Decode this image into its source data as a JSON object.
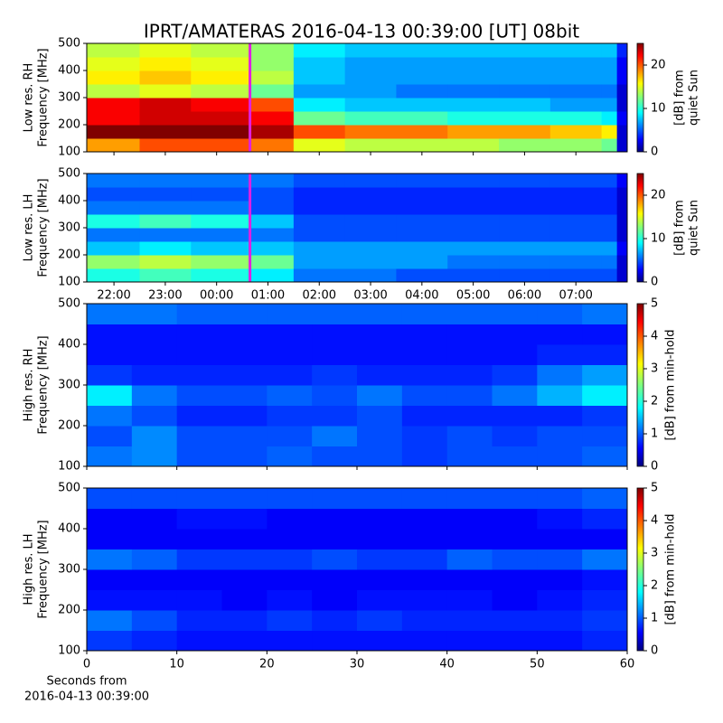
{
  "title": "IPRT/AMATERAS 2016-04-13 00:39:00 [UT]   08bit",
  "chart_data": [
    {
      "type": "heatmap",
      "colormap": "jet",
      "ylabel": [
        "Low res. RH",
        "Frequency [MHz]"
      ],
      "colorbar_label": [
        "[dB] from",
        "quiet Sun"
      ],
      "xlim": [
        21.47,
        32.0
      ],
      "xticks": [
        22,
        23,
        24,
        25,
        26,
        27,
        28,
        29,
        30,
        31
      ],
      "show_xtick_labels": false,
      "ylim": [
        100,
        500
      ],
      "yticks": [
        100,
        200,
        300,
        400,
        500
      ],
      "clim": [
        0,
        25
      ],
      "cticks": [
        0,
        10,
        20
      ],
      "marker_x": 24.65,
      "marker_color": "#e020e0",
      "x_bins": [
        21.47,
        22.5,
        23.5,
        24.65,
        25.5,
        26.5,
        27.5,
        28.5,
        29.5,
        30.5,
        31.5,
        31.8,
        32.0
      ],
      "y_bins": [
        100,
        150,
        200,
        250,
        300,
        350,
        400,
        450,
        500
      ],
      "values": [
        [
          18,
          20,
          20,
          19,
          15,
          14,
          14,
          14,
          13,
          13,
          12,
          2
        ],
        [
          25,
          25,
          25,
          24,
          20,
          19,
          19,
          18,
          18,
          17,
          16,
          2
        ],
        [
          22,
          23,
          23,
          22,
          12,
          11,
          11,
          10,
          10,
          10,
          9,
          3
        ],
        [
          22,
          23,
          22,
          20,
          9,
          8,
          8,
          8,
          8,
          7,
          7,
          2
        ],
        [
          14,
          15,
          14,
          12,
          7,
          7,
          6,
          6,
          6,
          6,
          6,
          2
        ],
        [
          16,
          17,
          16,
          14,
          8,
          7,
          7,
          7,
          7,
          7,
          7,
          3
        ],
        [
          15,
          16,
          15,
          13,
          8,
          7,
          7,
          7,
          7,
          7,
          7,
          3
        ],
        [
          14,
          15,
          14,
          13,
          9,
          8,
          8,
          8,
          8,
          8,
          8,
          4
        ]
      ]
    },
    {
      "type": "heatmap",
      "colormap": "jet",
      "ylabel": [
        "Low res. LH",
        "Frequency [MHz]"
      ],
      "colorbar_label": [
        "[dB] from",
        "quiet Sun"
      ],
      "xlim": [
        21.47,
        32.0
      ],
      "xticks": [
        {
          "value": 22,
          "label": "22:00"
        },
        {
          "value": 23,
          "label": "23:00"
        },
        {
          "value": 24,
          "label": "00:00"
        },
        {
          "value": 25,
          "label": "01:00"
        },
        {
          "value": 26,
          "label": "02:00"
        },
        {
          "value": 27,
          "label": "03:00"
        },
        {
          "value": 28,
          "label": "04:00"
        },
        {
          "value": 29,
          "label": "05:00"
        },
        {
          "value": 30,
          "label": "06:00"
        },
        {
          "value": 31,
          "label": "07:00"
        }
      ],
      "show_xtick_labels": true,
      "ylim": [
        100,
        500
      ],
      "yticks": [
        100,
        200,
        300,
        400,
        500
      ],
      "clim": [
        0,
        25
      ],
      "cticks": [
        0,
        10,
        20
      ],
      "marker_x": 24.65,
      "marker_color": "#e020e0",
      "x_bins": [
        21.47,
        22.5,
        23.5,
        24.65,
        25.5,
        26.5,
        27.5,
        28.5,
        29.5,
        30.5,
        31.5,
        31.8,
        32.0
      ],
      "y_bins": [
        100,
        150,
        200,
        250,
        300,
        350,
        400,
        450,
        500
      ],
      "values": [
        [
          10,
          11,
          10,
          9,
          6,
          6,
          5,
          5,
          5,
          5,
          5,
          2
        ],
        [
          13,
          14,
          13,
          12,
          7,
          7,
          7,
          6,
          6,
          6,
          6,
          2
        ],
        [
          8,
          9,
          8,
          8,
          7,
          7,
          7,
          7,
          7,
          7,
          7,
          3
        ],
        [
          6,
          6,
          6,
          6,
          5,
          5,
          5,
          5,
          5,
          5,
          5,
          2
        ],
        [
          10,
          11,
          10,
          8,
          5,
          5,
          5,
          5,
          5,
          5,
          5,
          2
        ],
        [
          6,
          6,
          6,
          5,
          4,
          4,
          4,
          4,
          4,
          4,
          4,
          2
        ],
        [
          5,
          5,
          5,
          5,
          4,
          4,
          4,
          4,
          4,
          4,
          4,
          2
        ],
        [
          6,
          6,
          6,
          6,
          5,
          5,
          5,
          5,
          5,
          5,
          5,
          3
        ]
      ]
    },
    {
      "type": "heatmap",
      "colormap": "jet",
      "ylabel": [
        "High res. RH",
        "Frequency [MHz]"
      ],
      "colorbar_label": [
        "[dB] from min-hold"
      ],
      "xlim": [
        0,
        60
      ],
      "xticks": [
        0,
        10,
        20,
        30,
        40,
        50,
        60
      ],
      "show_xtick_labels": false,
      "ylim": [
        100,
        500
      ],
      "yticks": [
        100,
        200,
        300,
        400,
        500
      ],
      "clim": [
        0,
        5
      ],
      "cticks": [
        0,
        1,
        2,
        3,
        4,
        5
      ],
      "x_bins": [
        0,
        5,
        10,
        15,
        20,
        25,
        30,
        35,
        40,
        45,
        50,
        55,
        60
      ],
      "y_bins": [
        100,
        150,
        200,
        250,
        300,
        350,
        400,
        450,
        500
      ],
      "values": [
        [
          1.2,
          1.3,
          1.0,
          1.0,
          1.1,
          1.0,
          1.0,
          0.9,
          1.0,
          1.0,
          1.0,
          1.1
        ],
        [
          1.0,
          1.3,
          1.0,
          1.0,
          1.0,
          1.2,
          1.0,
          0.9,
          1.0,
          0.9,
          1.0,
          1.0
        ],
        [
          1.2,
          1.0,
          0.8,
          0.8,
          0.9,
          0.9,
          1.0,
          0.8,
          0.8,
          0.8,
          0.8,
          0.9
        ],
        [
          1.8,
          1.2,
          1.0,
          1.0,
          1.1,
          1.0,
          1.2,
          1.0,
          1.0,
          1.2,
          1.5,
          1.8
        ],
        [
          0.9,
          0.8,
          0.8,
          0.8,
          0.8,
          0.9,
          0.8,
          0.8,
          0.8,
          0.9,
          1.2,
          1.4
        ],
        [
          0.7,
          0.7,
          0.7,
          0.7,
          0.7,
          0.7,
          0.7,
          0.7,
          0.7,
          0.7,
          0.8,
          0.8
        ],
        [
          0.7,
          0.7,
          0.7,
          0.7,
          0.7,
          0.7,
          0.7,
          0.7,
          0.7,
          0.7,
          0.7,
          0.7
        ],
        [
          1.2,
          1.2,
          1.1,
          1.1,
          1.1,
          1.1,
          1.1,
          1.1,
          1.1,
          1.1,
          1.1,
          1.2
        ]
      ]
    },
    {
      "type": "heatmap",
      "colormap": "jet",
      "ylabel": [
        "High res. LH",
        "Frequency [MHz]"
      ],
      "colorbar_label": [
        "[dB] from min-hold"
      ],
      "xlabel": [
        "Seconds from",
        "2016-04-13 00:39:00"
      ],
      "xlim": [
        0,
        60
      ],
      "xticks": [
        0,
        10,
        20,
        30,
        40,
        50,
        60
      ],
      "show_xtick_labels": true,
      "ylim": [
        100,
        500
      ],
      "yticks": [
        100,
        200,
        300,
        400,
        500
      ],
      "clim": [
        0,
        5
      ],
      "cticks": [
        0,
        1,
        2,
        3,
        4,
        5
      ],
      "x_bins": [
        0,
        5,
        10,
        15,
        20,
        25,
        30,
        35,
        40,
        45,
        50,
        55,
        60
      ],
      "y_bins": [
        100,
        150,
        200,
        250,
        300,
        350,
        400,
        450,
        500
      ],
      "values": [
        [
          0.9,
          0.8,
          0.7,
          0.7,
          0.7,
          0.7,
          0.7,
          0.7,
          0.7,
          0.7,
          0.7,
          0.8
        ],
        [
          1.2,
          1.0,
          0.8,
          0.8,
          0.9,
          0.8,
          0.9,
          0.8,
          0.8,
          0.8,
          0.8,
          0.9
        ],
        [
          0.7,
          0.7,
          0.7,
          0.6,
          0.7,
          0.6,
          0.7,
          0.7,
          0.7,
          0.6,
          0.7,
          0.8
        ],
        [
          0.6,
          0.6,
          0.6,
          0.6,
          0.6,
          0.6,
          0.6,
          0.6,
          0.6,
          0.6,
          0.6,
          0.7
        ],
        [
          1.2,
          1.1,
          0.9,
          0.9,
          0.9,
          1.0,
          0.9,
          0.9,
          1.1,
          1.0,
          1.0,
          1.2
        ],
        [
          0.6,
          0.6,
          0.6,
          0.6,
          0.6,
          0.6,
          0.6,
          0.6,
          0.6,
          0.6,
          0.6,
          0.6
        ],
        [
          0.6,
          0.6,
          0.7,
          0.7,
          0.6,
          0.6,
          0.6,
          0.6,
          0.6,
          0.6,
          0.7,
          0.8
        ],
        [
          1.0,
          1.0,
          1.0,
          1.0,
          1.0,
          1.0,
          1.0,
          1.0,
          1.0,
          1.0,
          1.0,
          1.1
        ]
      ]
    }
  ]
}
